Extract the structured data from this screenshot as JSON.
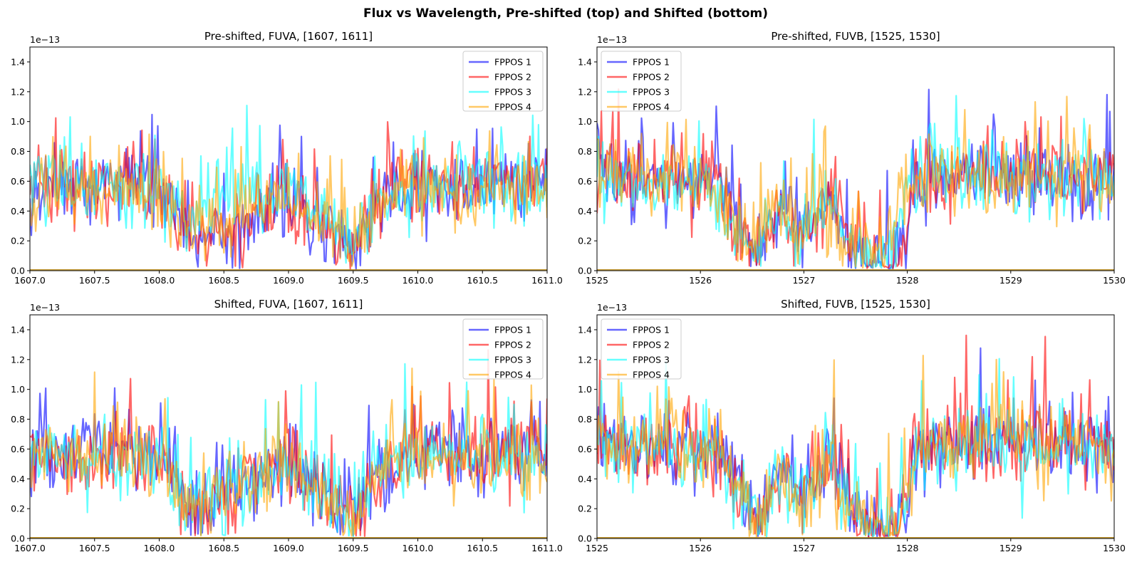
{
  "figure_title": "Flux vs Wavelength, Pre-shifted (top) and Shifted (bottom)",
  "chart_data": [
    {
      "type": "line",
      "title": "Pre-shifted, FUVA, [1607, 1611]",
      "xlim": [
        1607.0,
        1611.0
      ],
      "ylim": [
        0.0,
        1.5
      ],
      "y_offset_label": "1e−13",
      "xticks": [
        "1607.0",
        "1607.5",
        "1608.0",
        "1608.5",
        "1609.0",
        "1609.5",
        "1610.0",
        "1610.5",
        "1611.0"
      ],
      "yticks": [
        "0.0",
        "0.2",
        "0.4",
        "0.6",
        "0.8",
        "1.0",
        "1.2",
        "1.4"
      ],
      "legend_position": "upper right",
      "series": [
        {
          "name": "FPPOS 1",
          "color": "#0000ff",
          "x": [
            1607.0,
            1607.5,
            1608.0,
            1608.25,
            1608.5,
            1609.0,
            1609.5,
            1609.7,
            1610.0,
            1610.5,
            1611.0
          ],
          "y": [
            0.55,
            0.58,
            0.55,
            0.2,
            0.25,
            0.5,
            0.12,
            0.45,
            0.6,
            0.55,
            0.58
          ]
        },
        {
          "name": "FPPOS 2",
          "color": "#ff0000",
          "x": [
            1607.0,
            1607.5,
            1608.0,
            1608.25,
            1608.5,
            1609.0,
            1609.5,
            1609.7,
            1610.0,
            1610.5,
            1611.0
          ],
          "y": [
            0.55,
            0.55,
            0.55,
            0.25,
            0.25,
            0.45,
            0.12,
            0.45,
            0.58,
            0.55,
            0.6
          ]
        },
        {
          "name": "FPPOS 3",
          "color": "#00ffff",
          "x": [
            1607.0,
            1607.5,
            1608.0,
            1608.25,
            1608.5,
            1609.0,
            1609.5,
            1609.7,
            1610.0,
            1610.5,
            1611.0
          ],
          "y": [
            0.6,
            0.55,
            0.55,
            0.35,
            0.55,
            0.55,
            0.2,
            0.5,
            0.6,
            0.55,
            0.55
          ]
        },
        {
          "name": "FPPOS 4",
          "color": "#ffa500",
          "x": [
            1607.0,
            1607.5,
            1608.0,
            1608.25,
            1608.5,
            1609.0,
            1609.5,
            1609.7,
            1610.0,
            1610.5,
            1611.0
          ],
          "y": [
            0.55,
            0.55,
            0.55,
            0.2,
            0.4,
            0.5,
            0.2,
            0.45,
            0.55,
            0.55,
            0.55
          ]
        }
      ]
    },
    {
      "type": "line",
      "title": "Pre-shifted, FUVB, [1525, 1530]",
      "xlim": [
        1525,
        1530
      ],
      "ylim": [
        0.0,
        1.5
      ],
      "y_offset_label": "1e−13",
      "xticks": [
        "1525",
        "1526",
        "1527",
        "1528",
        "1529",
        "1530"
      ],
      "yticks": [
        "0.0",
        "0.2",
        "0.4",
        "0.6",
        "0.8",
        "1.0",
        "1.2",
        "1.4"
      ],
      "legend_position": "upper left",
      "series": [
        {
          "name": "FPPOS 1",
          "color": "#0000ff",
          "x": [
            1525,
            1525.9,
            1526.15,
            1526.35,
            1526.55,
            1526.75,
            1527.0,
            1527.25,
            1527.5,
            1527.7,
            1527.9,
            1528.1,
            1529,
            1530
          ],
          "y": [
            0.65,
            0.62,
            0.6,
            0.35,
            0.1,
            0.35,
            0.3,
            0.5,
            0.15,
            0.05,
            0.05,
            0.6,
            0.65,
            0.6
          ]
        },
        {
          "name": "FPPOS 2",
          "color": "#ff0000",
          "x": [
            1525,
            1525.9,
            1526.15,
            1526.35,
            1526.55,
            1526.75,
            1527.0,
            1527.25,
            1527.5,
            1527.7,
            1527.9,
            1528.1,
            1529,
            1530
          ],
          "y": [
            0.65,
            0.62,
            0.6,
            0.35,
            0.1,
            0.35,
            0.3,
            0.5,
            0.15,
            0.05,
            0.05,
            0.6,
            0.65,
            0.6
          ]
        },
        {
          "name": "FPPOS 3",
          "color": "#00ffff",
          "x": [
            1525,
            1525.9,
            1526.1,
            1526.3,
            1526.5,
            1526.75,
            1527.0,
            1527.2,
            1527.4,
            1527.6,
            1527.85,
            1528.0,
            1529,
            1530
          ],
          "y": [
            0.62,
            0.6,
            0.55,
            0.35,
            0.12,
            0.4,
            0.3,
            0.5,
            0.2,
            0.05,
            0.1,
            0.6,
            0.65,
            0.6
          ]
        },
        {
          "name": "FPPOS 4",
          "color": "#ffa500",
          "x": [
            1525,
            1525.9,
            1526.05,
            1526.25,
            1526.45,
            1526.7,
            1527.0,
            1527.15,
            1527.35,
            1527.55,
            1527.8,
            1528.0,
            1529,
            1530
          ],
          "y": [
            0.65,
            0.62,
            0.55,
            0.3,
            0.15,
            0.4,
            0.3,
            0.5,
            0.2,
            0.08,
            0.2,
            0.6,
            0.65,
            0.6
          ]
        }
      ]
    },
    {
      "type": "line",
      "title": "Shifted, FUVA, [1607, 1611]",
      "xlim": [
        1607.0,
        1611.0
      ],
      "ylim": [
        0.0,
        1.5
      ],
      "y_offset_label": "1e−13",
      "xticks": [
        "1607.0",
        "1607.5",
        "1608.0",
        "1608.5",
        "1609.0",
        "1609.5",
        "1610.0",
        "1610.5",
        "1611.0"
      ],
      "yticks": [
        "0.0",
        "0.2",
        "0.4",
        "0.6",
        "0.8",
        "1.0",
        "1.2",
        "1.4"
      ],
      "legend_position": "upper right",
      "series": [
        {
          "name": "FPPOS 1",
          "color": "#0000ff",
          "x": [
            1607.0,
            1607.5,
            1608.0,
            1608.25,
            1608.5,
            1609.0,
            1609.5,
            1609.7,
            1610.0,
            1610.5,
            1611.0
          ],
          "y": [
            0.55,
            0.58,
            0.55,
            0.2,
            0.3,
            0.5,
            0.15,
            0.45,
            0.6,
            0.55,
            0.58
          ]
        },
        {
          "name": "FPPOS 2",
          "color": "#ff0000",
          "x": [
            1607.0,
            1607.5,
            1608.0,
            1608.25,
            1608.5,
            1609.0,
            1609.5,
            1609.7,
            1610.0,
            1610.5,
            1611.0
          ],
          "y": [
            0.55,
            0.55,
            0.55,
            0.2,
            0.3,
            0.5,
            0.15,
            0.45,
            0.6,
            0.55,
            0.6
          ]
        },
        {
          "name": "FPPOS 3",
          "color": "#00ffff",
          "x": [
            1607.0,
            1607.5,
            1608.0,
            1608.25,
            1608.5,
            1609.0,
            1609.5,
            1609.7,
            1610.0,
            1610.5,
            1611.0
          ],
          "y": [
            0.6,
            0.55,
            0.55,
            0.25,
            0.3,
            0.5,
            0.15,
            0.5,
            0.6,
            0.55,
            0.55
          ]
        },
        {
          "name": "FPPOS 4",
          "color": "#ffa500",
          "x": [
            1607.0,
            1607.5,
            1608.0,
            1608.25,
            1608.5,
            1609.0,
            1609.5,
            1609.7,
            1610.0,
            1610.5,
            1611.0
          ],
          "y": [
            0.55,
            0.55,
            0.55,
            0.2,
            0.3,
            0.5,
            0.15,
            0.45,
            0.55,
            0.55,
            0.55
          ]
        }
      ]
    },
    {
      "type": "line",
      "title": "Shifted, FUVB, [1525, 1530]",
      "xlim": [
        1525,
        1530
      ],
      "ylim": [
        0.0,
        1.5
      ],
      "y_offset_label": "1e−13",
      "xticks": [
        "1525",
        "1526",
        "1527",
        "1528",
        "1529",
        "1530"
      ],
      "yticks": [
        "0.0",
        "0.2",
        "0.4",
        "0.6",
        "0.8",
        "1.0",
        "1.2",
        "1.4"
      ],
      "legend_position": "upper left",
      "series": [
        {
          "name": "FPPOS 1",
          "color": "#0000ff",
          "x": [
            1525,
            1525.9,
            1526.15,
            1526.35,
            1526.55,
            1526.75,
            1527.0,
            1527.25,
            1527.5,
            1527.7,
            1527.9,
            1528.1,
            1529,
            1530
          ],
          "y": [
            0.65,
            0.62,
            0.6,
            0.35,
            0.1,
            0.4,
            0.3,
            0.5,
            0.15,
            0.05,
            0.05,
            0.6,
            0.65,
            0.6
          ]
        },
        {
          "name": "FPPOS 2",
          "color": "#ff0000",
          "x": [
            1525,
            1525.9,
            1526.15,
            1526.35,
            1526.55,
            1526.75,
            1527.0,
            1527.25,
            1527.5,
            1527.7,
            1527.9,
            1528.1,
            1529,
            1530
          ],
          "y": [
            0.65,
            0.62,
            0.6,
            0.35,
            0.1,
            0.4,
            0.3,
            0.5,
            0.15,
            0.05,
            0.05,
            0.6,
            0.65,
            0.6
          ]
        },
        {
          "name": "FPPOS 3",
          "color": "#00ffff",
          "x": [
            1525,
            1525.9,
            1526.15,
            1526.35,
            1526.55,
            1526.75,
            1527.0,
            1527.25,
            1527.5,
            1527.7,
            1527.9,
            1528.1,
            1529,
            1530
          ],
          "y": [
            0.62,
            0.6,
            0.6,
            0.35,
            0.1,
            0.4,
            0.3,
            0.5,
            0.15,
            0.05,
            0.05,
            0.6,
            0.65,
            0.6
          ]
        },
        {
          "name": "FPPOS 4",
          "color": "#ffa500",
          "x": [
            1525,
            1525.9,
            1526.15,
            1526.35,
            1526.55,
            1526.75,
            1527.0,
            1527.25,
            1527.5,
            1527.7,
            1527.9,
            1528.1,
            1529,
            1530
          ],
          "y": [
            0.65,
            0.62,
            0.6,
            0.35,
            0.1,
            0.4,
            0.3,
            0.5,
            0.15,
            0.05,
            0.05,
            0.6,
            0.65,
            0.6
          ]
        }
      ]
    }
  ]
}
